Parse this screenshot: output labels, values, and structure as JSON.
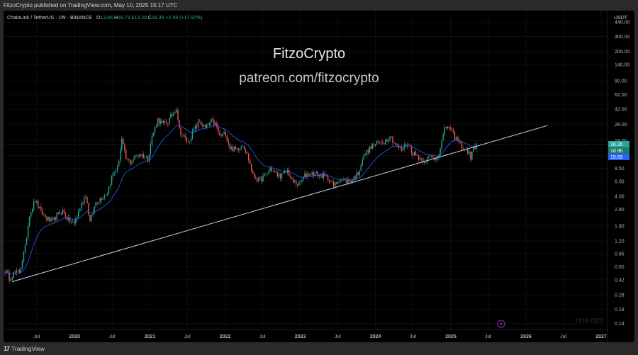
{
  "header": {
    "published_text": "FitzoCrypto published on TradingView.com, May 10, 2025 15:17 UTC"
  },
  "legend": {
    "symbol": "ChainLink / TetherUS · 1W · BINANCE",
    "open_label": "O",
    "open": "13.86",
    "high_label": "H",
    "high": "16.73",
    "low_label": "L",
    "low": "13.20",
    "close_label": "C",
    "close": "16.35",
    "change": "+2.49 (+17.97%)"
  },
  "watermark": {
    "title": "FitzoCrypto",
    "subtitle": "patreon.com/fitzocrypto"
  },
  "symbol_watermark": "LINKUSDT",
  "price_scale": {
    "currency": "USDT",
    "last_price": "16.35",
    "countdown": "1d 9h",
    "ma_value": "15.69"
  },
  "footer": {
    "brand": "TradingView"
  },
  "colors": {
    "up": "#26a69a",
    "down": "#ef5350",
    "ma": "#2962ff",
    "trendline": "#d1d4dc",
    "grid": "#1a1a1a"
  },
  "chart_data": {
    "type": "candlestick",
    "scale": "log",
    "ylim": [
      0.11,
      600
    ],
    "y_ticks": [
      440,
      300,
      200,
      140,
      90,
      62,
      42,
      28,
      18,
      12,
      8.5,
      6,
      4,
      2.8,
      1.8,
      1.2,
      0.85,
      0.6,
      0.42,
      0.28,
      0.19,
      0.13
    ],
    "y_tick_labels": [
      "440.00",
      "300.00",
      "200.00",
      "140.00",
      "90.00",
      "62.00",
      "42.00",
      "28.00",
      "18.00",
      "12.00",
      "8.50",
      "6.00",
      "4.00",
      "2.80",
      "1.80",
      "1.20",
      "0.85",
      "0.60",
      "0.42",
      "0.28",
      "0.19",
      "0.13"
    ],
    "xlim": [
      "2019-01-21",
      "2027-02-01"
    ],
    "x_ticks": [
      {
        "date": "2019-07-01",
        "label": "Jul"
      },
      {
        "date": "2020-01-01",
        "label": "2020"
      },
      {
        "date": "2020-07-01",
        "label": "Jul"
      },
      {
        "date": "2021-01-01",
        "label": "2021"
      },
      {
        "date": "2021-07-01",
        "label": "Jul"
      },
      {
        "date": "2022-01-01",
        "label": "2022"
      },
      {
        "date": "2022-07-01",
        "label": "Jul"
      },
      {
        "date": "2023-01-01",
        "label": "2023"
      },
      {
        "date": "2023-07-01",
        "label": "Jul"
      },
      {
        "date": "2024-01-01",
        "label": "2024"
      },
      {
        "date": "2024-07-01",
        "label": "Jul"
      },
      {
        "date": "2025-01-01",
        "label": "2025"
      },
      {
        "date": "2025-07-01",
        "label": "Jul"
      },
      {
        "date": "2026-01-01",
        "label": "2026"
      },
      {
        "date": "2026-07-01",
        "label": "Jul"
      },
      {
        "date": "2027-01-01",
        "label": "2027"
      }
    ],
    "price_path": [
      [
        "2019-01-28",
        0.55
      ],
      [
        "2019-02-18",
        0.44
      ],
      [
        "2019-03-11",
        0.5
      ],
      [
        "2019-04-08",
        0.52
      ],
      [
        "2019-05-06",
        1.0
      ],
      [
        "2019-05-27",
        2.5
      ],
      [
        "2019-06-24",
        3.6
      ],
      [
        "2019-07-22",
        2.6
      ],
      [
        "2019-08-19",
        2.2
      ],
      [
        "2019-09-16",
        2.0
      ],
      [
        "2019-10-07",
        2.4
      ],
      [
        "2019-11-04",
        2.7
      ],
      [
        "2019-12-02",
        2.1
      ],
      [
        "2019-12-30",
        1.9
      ],
      [
        "2020-01-27",
        2.9
      ],
      [
        "2020-02-24",
        4.2
      ],
      [
        "2020-03-16",
        2.0
      ],
      [
        "2020-04-13",
        3.4
      ],
      [
        "2020-05-11",
        3.9
      ],
      [
        "2020-06-08",
        4.5
      ],
      [
        "2020-07-06",
        7.5
      ],
      [
        "2020-07-27",
        8.5
      ],
      [
        "2020-08-17",
        18.5
      ],
      [
        "2020-09-07",
        11.0
      ],
      [
        "2020-09-28",
        10.0
      ],
      [
        "2020-10-19",
        11.5
      ],
      [
        "2020-11-09",
        12.5
      ],
      [
        "2020-11-30",
        12.0
      ],
      [
        "2020-12-21",
        11.0
      ],
      [
        "2021-01-11",
        20.0
      ],
      [
        "2021-02-08",
        32.0
      ],
      [
        "2021-03-01",
        28.0
      ],
      [
        "2021-03-29",
        30.0
      ],
      [
        "2021-04-19",
        36.0
      ],
      [
        "2021-05-10",
        44.0
      ],
      [
        "2021-05-24",
        24.0
      ],
      [
        "2021-06-14",
        20.0
      ],
      [
        "2021-07-05",
        17.0
      ],
      [
        "2021-08-02",
        24.0
      ],
      [
        "2021-08-30",
        30.0
      ],
      [
        "2021-09-27",
        25.0
      ],
      [
        "2021-10-25",
        30.0
      ],
      [
        "2021-11-15",
        28.0
      ],
      [
        "2021-12-06",
        20.0
      ],
      [
        "2022-01-03",
        22.0
      ],
      [
        "2022-01-24",
        15.0
      ],
      [
        "2022-02-21",
        14.0
      ],
      [
        "2022-03-28",
        16.5
      ],
      [
        "2022-04-25",
        11.0
      ],
      [
        "2022-05-16",
        7.0
      ],
      [
        "2022-06-13",
        6.2
      ],
      [
        "2022-07-11",
        6.8
      ],
      [
        "2022-08-08",
        8.5
      ],
      [
        "2022-09-05",
        7.2
      ],
      [
        "2022-10-03",
        7.0
      ],
      [
        "2022-10-31",
        8.0
      ],
      [
        "2022-11-21",
        6.0
      ],
      [
        "2022-12-26",
        5.5
      ],
      [
        "2023-01-23",
        7.0
      ],
      [
        "2023-02-20",
        7.5
      ],
      [
        "2023-03-27",
        7.2
      ],
      [
        "2023-04-24",
        7.0
      ],
      [
        "2023-05-22",
        6.4
      ],
      [
        "2023-06-12",
        5.2
      ],
      [
        "2023-07-10",
        6.5
      ],
      [
        "2023-08-14",
        6.0
      ],
      [
        "2023-09-11",
        6.3
      ],
      [
        "2023-10-09",
        7.5
      ],
      [
        "2023-10-30",
        11.0
      ],
      [
        "2023-11-27",
        14.0
      ],
      [
        "2023-12-25",
        16.0
      ],
      [
        "2024-01-22",
        17.0
      ],
      [
        "2024-02-19",
        18.0
      ],
      [
        "2024-03-11",
        21.0
      ],
      [
        "2024-04-08",
        16.0
      ],
      [
        "2024-05-06",
        14.0
      ],
      [
        "2024-06-03",
        17.0
      ],
      [
        "2024-07-01",
        13.0
      ],
      [
        "2024-07-29",
        11.5
      ],
      [
        "2024-08-26",
        10.5
      ],
      [
        "2024-09-23",
        11.5
      ],
      [
        "2024-10-21",
        11.0
      ],
      [
        "2024-11-11",
        15.0
      ],
      [
        "2024-12-02",
        24.0
      ],
      [
        "2024-12-16",
        27.0
      ],
      [
        "2025-01-13",
        21.0
      ],
      [
        "2025-02-03",
        18.0
      ],
      [
        "2025-03-03",
        14.5
      ],
      [
        "2025-03-24",
        13.5
      ],
      [
        "2025-04-07",
        11.5
      ],
      [
        "2025-04-21",
        14.5
      ],
      [
        "2025-05-05",
        16.35
      ]
    ],
    "trendline": [
      [
        "2019-03-04",
        0.4
      ],
      [
        "2026-04-15",
        27.0
      ]
    ],
    "last_price": 16.35,
    "ma_last": 15.69
  }
}
